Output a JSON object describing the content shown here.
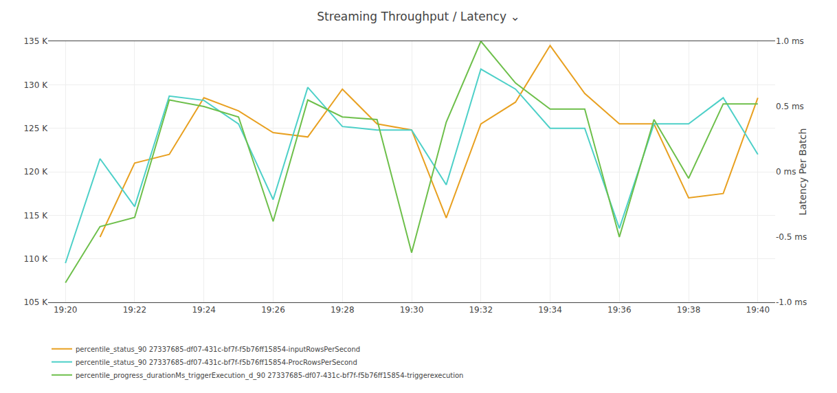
{
  "chart_data": {
    "type": "line",
    "title": "Streaming Throughput / Latency ⌄",
    "categories": [
      "19:20",
      null,
      "19:22",
      null,
      "19:24",
      null,
      "19:26",
      null,
      "19:28",
      null,
      "19:30",
      null,
      "19:32",
      null,
      "19:34",
      null,
      "19:36",
      null,
      "19:38",
      null,
      "19:40"
    ],
    "ylim": [
      105000,
      135000
    ],
    "yticks": [
      {
        "value": 105000,
        "label": "105 K"
      },
      {
        "value": 110000,
        "label": "110 K"
      },
      {
        "value": 115000,
        "label": "115 K"
      },
      {
        "value": 120000,
        "label": "120 K"
      },
      {
        "value": 125000,
        "label": "125 K"
      },
      {
        "value": 130000,
        "label": "130 K"
      },
      {
        "value": 135000,
        "label": "135 K"
      }
    ],
    "y2lim": [
      -1.0,
      1.0
    ],
    "y2ticks": [
      {
        "value": -1.0,
        "label": "-1.0 ms"
      },
      {
        "value": -0.5,
        "label": "-0.5 ms"
      },
      {
        "value": 0.0,
        "label": "0 ms"
      },
      {
        "value": 0.5,
        "label": "0.5 ms"
      },
      {
        "value": 1.0,
        "label": "1.0 ms"
      }
    ],
    "y2label": "Latency Per Batch",
    "grid": true,
    "legend": "bottom",
    "series": [
      {
        "name": "percentile_status_90 27337685-df07-431c-bf7f-f5b76ff15854-inputRowsPerSecond",
        "color": "#e8a020",
        "values": [
          null,
          112500,
          121000,
          122000,
          128500,
          127000,
          124500,
          124000,
          129500,
          125500,
          124800,
          114700,
          125500,
          128000,
          134500,
          129000,
          125500,
          125500,
          117000,
          117500,
          128500
        ]
      },
      {
        "name": "percentile_status_90 27337685-df07-431c-bf7f-f5b76ff15854-ProcRowsPerSecond",
        "color": "#4dd0c8",
        "values": [
          109500,
          121500,
          116000,
          128700,
          128200,
          125500,
          116800,
          129700,
          125200,
          124800,
          124800,
          118500,
          131800,
          129500,
          125000,
          125000,
          113500,
          125500,
          125500,
          128500,
          122000
        ]
      },
      {
        "name": "percentile_progress_durationMs_triggerExecution_d_90 27337685-df07-431c-bf7f-f5b76ff15854-triggerexecution",
        "color": "#6dbf4a",
        "axis": "y2",
        "values": [
          -0.85,
          -0.42,
          -0.35,
          0.55,
          0.5,
          0.42,
          -0.38,
          0.55,
          0.42,
          0.4,
          -0.62,
          0.38,
          1.0,
          0.68,
          0.48,
          0.48,
          -0.5,
          0.4,
          -0.05,
          0.52,
          0.52
        ]
      }
    ]
  }
}
